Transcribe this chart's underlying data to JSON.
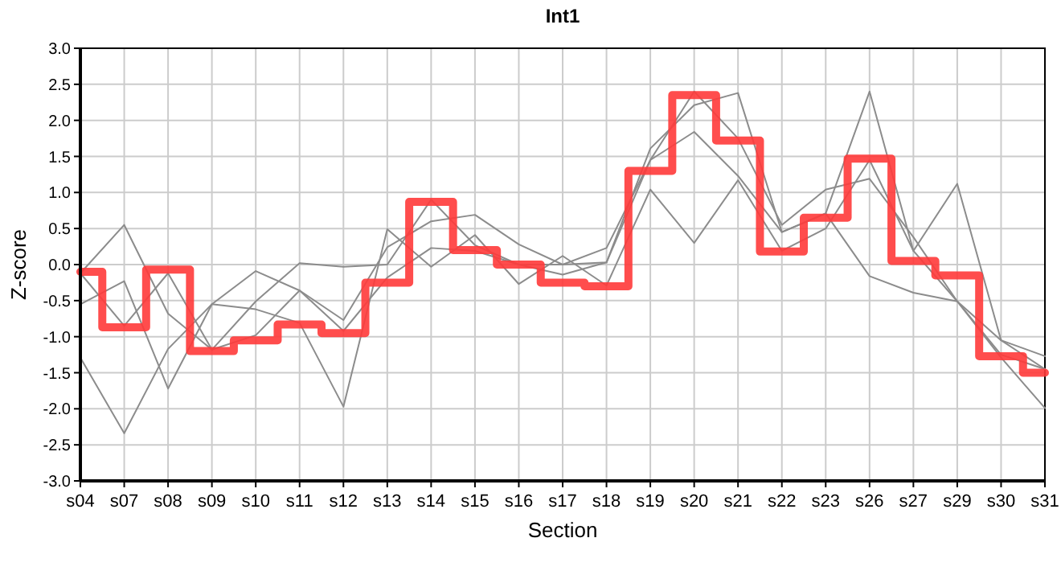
{
  "chart_data": {
    "type": "line",
    "title": "Int1",
    "xlabel": "Section",
    "ylabel": "Z-score",
    "categories": [
      "s04",
      "s07",
      "s08",
      "s09",
      "s10",
      "s11",
      "s12",
      "s13",
      "s14",
      "s15",
      "s16",
      "s17",
      "s18",
      "s19",
      "s20",
      "s21",
      "s22",
      "s23",
      "s26",
      "s27",
      "s29",
      "s30",
      "s31"
    ],
    "series": [
      {
        "type": "line",
        "color": "#8c8c8c",
        "values": [
          -0.12,
          0.55,
          -0.68,
          -1.18,
          -0.51,
          0.02,
          -0.03,
          0.0,
          0.9,
          0.27,
          0.0,
          -0.14,
          0.03,
          1.61,
          2.21,
          2.38,
          0.45,
          0.71,
          2.4,
          0.19,
          1.12,
          -1.05,
          -1.27
        ]
      },
      {
        "type": "line",
        "color": "#8c8c8c",
        "values": [
          -0.55,
          -0.23,
          -1.72,
          -0.55,
          -0.09,
          -0.36,
          -0.77,
          0.24,
          0.6,
          0.69,
          0.28,
          0.0,
          0.23,
          1.45,
          2.4,
          1.75,
          0.55,
          1.04,
          1.19,
          0.38,
          -0.51,
          -1.25,
          -1.45
        ]
      },
      {
        "type": "line",
        "color": "#8c8c8c",
        "values": [
          -1.29,
          -2.34,
          -1.17,
          -0.55,
          -0.62,
          -0.81,
          -1.97,
          0.49,
          -0.03,
          0.41,
          -0.27,
          0.12,
          -0.29,
          1.04,
          0.3,
          1.17,
          0.19,
          0.5,
          1.45,
          0.19,
          -0.51,
          -1.29,
          -1.99
        ]
      },
      {
        "type": "line",
        "color": "#8c8c8c",
        "values": [
          -0.12,
          -0.85,
          -0.12,
          -1.18,
          -0.98,
          -0.36,
          -0.92,
          -0.18,
          0.23,
          0.19,
          0.0,
          0.0,
          0.03,
          1.45,
          1.84,
          1.23,
          0.45,
          0.71,
          -0.16,
          -0.39,
          -0.51,
          -1.05,
          -1.45
        ]
      },
      {
        "type": "step",
        "color": "#ff3a3a",
        "values": [
          -0.1,
          -0.87,
          -0.07,
          -1.2,
          -1.05,
          -0.83,
          -0.95,
          -0.25,
          0.87,
          0.2,
          0.0,
          -0.25,
          -0.3,
          1.3,
          2.35,
          1.72,
          0.18,
          0.65,
          1.47,
          0.05,
          -0.15,
          -1.27,
          -1.5
        ]
      }
    ],
    "ylim": [
      -3,
      3
    ],
    "yticks": [
      {
        "value": -3,
        "label": "-3.0"
      },
      {
        "value": -2.5,
        "label": "-2.5"
      },
      {
        "value": -2,
        "label": "-2.0"
      },
      {
        "value": -1.5,
        "label": "-1.5"
      },
      {
        "value": -1,
        "label": "-1.0"
      },
      {
        "value": -0.5,
        "label": "-0.5"
      },
      {
        "value": 0,
        "label": "0.0"
      },
      {
        "value": 0.5,
        "label": "0.5"
      },
      {
        "value": 1,
        "label": "1.0"
      },
      {
        "value": 1.5,
        "label": "1.5"
      },
      {
        "value": 2,
        "label": "2.0"
      },
      {
        "value": 2.5,
        "label": "2.5"
      },
      {
        "value": 3,
        "label": "3.0"
      }
    ],
    "grid": true,
    "marker": "none",
    "line_style": "solid"
  }
}
